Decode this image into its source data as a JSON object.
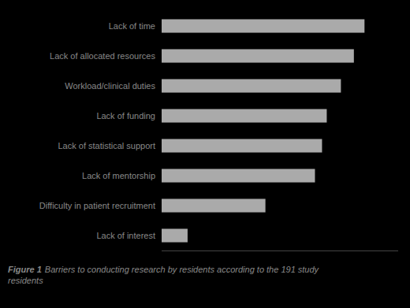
{
  "chart_data": {
    "type": "bar",
    "orientation": "horizontal",
    "categories": [
      "Lack of time",
      "Lack of allocated resources",
      "Workload/clinical duties",
      "Lack of funding",
      "Lack of statistical support",
      "Lack of mentorship",
      "Difficulty in patient recruitment",
      "Lack of interest"
    ],
    "values": [
      172,
      163,
      152,
      140,
      136,
      130,
      88,
      22
    ],
    "color": "#aaaaaa",
    "xlim": [
      0,
      200.55
    ],
    "xticks": [],
    "tick_labels": "y",
    "grid": false,
    "annotations": [
      "Figure 1",
      "Barriers to conducting research by residents according to the 191 study\nresidents"
    ]
  }
}
